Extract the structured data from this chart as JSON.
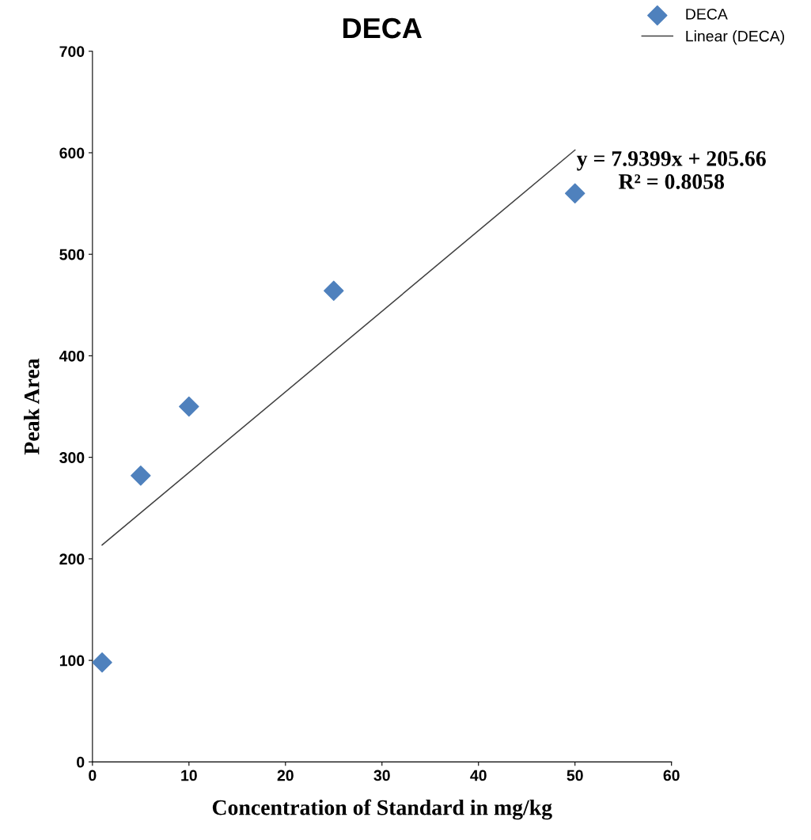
{
  "chart_data": {
    "type": "scatter",
    "title": "DECA",
    "xlabel": "Concentration of Standard in mg/kg",
    "ylabel": "Peak Area",
    "series": [
      {
        "name": "DECA",
        "color": "#4f81bd",
        "marker": "diamond",
        "x": [
          1,
          5,
          10,
          25,
          50
        ],
        "values": [
          98,
          282,
          350,
          464,
          560
        ]
      },
      {
        "name": "Linear (DECA)",
        "type": "line",
        "color": "#404040",
        "marker": "none",
        "line_style": "solid",
        "x": [
          1,
          50
        ],
        "values": [
          213.6,
          602.7
        ]
      }
    ],
    "xlim": [
      0,
      60
    ],
    "xticks": [
      0,
      10,
      20,
      30,
      40,
      50,
      60
    ],
    "ylim": [
      0,
      700
    ],
    "yticks": [
      0,
      100,
      200,
      300,
      400,
      500,
      600,
      700
    ],
    "grid": false,
    "legend": "top right",
    "annotations": [
      "y = 7.9399x + 205.66\nR² = 0.8058"
    ]
  }
}
